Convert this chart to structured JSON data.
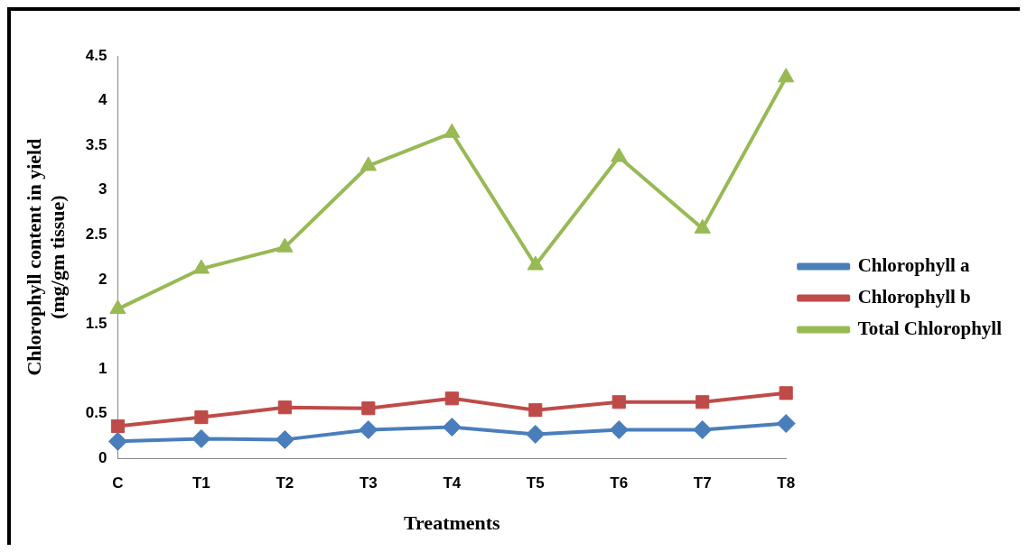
{
  "chart_data": {
    "type": "line",
    "xlabel": "Treatments",
    "ylabel": "Chlorophyll content in yield\n(mg/gm tissue)",
    "categories": [
      "C",
      "T1",
      "T2",
      "T3",
      "T4",
      "T5",
      "T6",
      "T7",
      "T8"
    ],
    "series": [
      {
        "name": "Chlorophyll a",
        "color": "#4a7ebb",
        "marker": "diamond",
        "values": [
          0.19,
          0.22,
          0.21,
          0.32,
          0.35,
          0.27,
          0.32,
          0.32,
          0.39
        ]
      },
      {
        "name": "Chlorophyll b",
        "color": "#be4b48",
        "marker": "square",
        "values": [
          0.36,
          0.46,
          0.57,
          0.56,
          0.67,
          0.54,
          0.63,
          0.63,
          0.73
        ]
      },
      {
        "name": "Total Chlorophyll",
        "color": "#98b954",
        "marker": "triangle",
        "values": [
          1.67,
          2.12,
          2.36,
          3.27,
          3.64,
          2.16,
          3.37,
          2.57,
          4.26
        ]
      }
    ],
    "ylim": [
      0,
      4.5
    ],
    "yticks": [
      0,
      0.5,
      1,
      1.5,
      2,
      2.5,
      3,
      3.5,
      4,
      4.5
    ],
    "grid": false,
    "legend": "right",
    "line_style": "solid"
  }
}
